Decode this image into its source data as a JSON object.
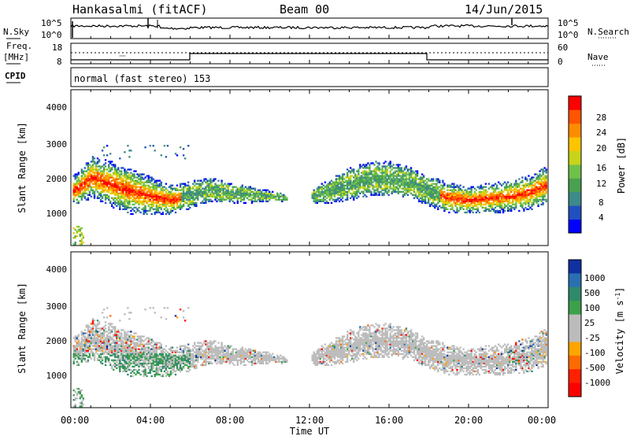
{
  "header": {
    "station": "Hankasalmi (fitACF)",
    "beam": "Beam 00",
    "date": "14/Jun/2015"
  },
  "side_labels": {
    "nsky": "N.Sky",
    "freq_line1": "Freq.",
    "freq_line2": "[MHz]",
    "cpid": "CPID",
    "nsearch": "N.Search",
    "nave": "Nave"
  },
  "cpid_text": "normal (fast stereo) 153",
  "colors": {
    "power_scale": [
      "#0000ff",
      "#2050c0",
      "#3d8a8a",
      "#48a050",
      "#6fc14a",
      "#c8d41a",
      "#ffc400",
      "#ff8c00",
      "#ff5500",
      "#ff0000"
    ],
    "velocity_scale": [
      "#1030a0",
      "#2a70b0",
      "#2f8a6a",
      "#3da04a",
      "#bcbcbc",
      "#bcbcbc",
      "#ffa500",
      "#ff6a00",
      "#ff2000",
      "#ff0000"
    ]
  },
  "chart_data": [
    {
      "type": "line",
      "panel": "noise",
      "yticks_left": [
        "10^5",
        "10^0"
      ],
      "yticks_right": [
        "10^5",
        "10^0"
      ],
      "xlim": [
        "00:00",
        "24:00"
      ]
    },
    {
      "type": "line",
      "panel": "frequency-nave",
      "yticks_left": [
        "18",
        "8"
      ],
      "yticks_right": [
        "60",
        "0"
      ],
      "series": [
        {
          "name": "Freq.",
          "x": [
            "00:00",
            "06:00",
            "06:00",
            "18:00",
            "18:00",
            "24:00"
          ],
          "values": [
            11,
            11,
            13,
            13,
            11,
            11
          ]
        },
        {
          "name": "Nave",
          "x": [
            "00:00",
            "24:00"
          ],
          "values": [
            38,
            38
          ]
        }
      ]
    },
    {
      "type": "heatmap",
      "panel": "power",
      "ylabel": "Slant Range [km]",
      "yticks": [
        "1000",
        "2000",
        "3000",
        "4000"
      ],
      "ylim": [
        180,
        4600
      ],
      "colorbar_label": "Power [dB]",
      "colorbar_ticks": [
        "4",
        "8",
        "12",
        "16",
        "20",
        "24",
        "28"
      ],
      "band": {
        "x": [
          0.3,
          1,
          2,
          3,
          4,
          5,
          6,
          7,
          8,
          9,
          10,
          11,
          12,
          13,
          14,
          15,
          16,
          17,
          18,
          19,
          20,
          21,
          22,
          23,
          23.8
        ],
        "center": [
          1750,
          2100,
          1900,
          1700,
          1560,
          1450,
          1600,
          1750,
          1650,
          1600,
          1560,
          1500,
          1550,
          1700,
          1900,
          2050,
          2050,
          1950,
          1700,
          1500,
          1450,
          1500,
          1550,
          1650,
          1850
        ],
        "halfwidth": [
          350,
          450,
          500,
          500,
          420,
          320,
          300,
          260,
          220,
          180,
          120,
          60,
          160,
          260,
          360,
          380,
          380,
          330,
          330,
          340,
          300,
          330,
          340,
          380,
          400
        ]
      }
    },
    {
      "type": "heatmap",
      "panel": "velocity",
      "ylabel": "Slant Range [km]",
      "yticks": [
        "1000",
        "2000",
        "3000",
        "4000"
      ],
      "ylim": [
        180,
        4600
      ],
      "xlabel": "Time UT",
      "xticks": [
        "00:00",
        "04:00",
        "08:00",
        "12:00",
        "16:00",
        "20:00",
        "00:00"
      ],
      "colorbar_label": "Velocity [m s^-1]",
      "colorbar_ticks": [
        "1000",
        "500",
        "100",
        "25",
        "-25",
        "-100",
        "-500",
        "-1000"
      ]
    }
  ]
}
